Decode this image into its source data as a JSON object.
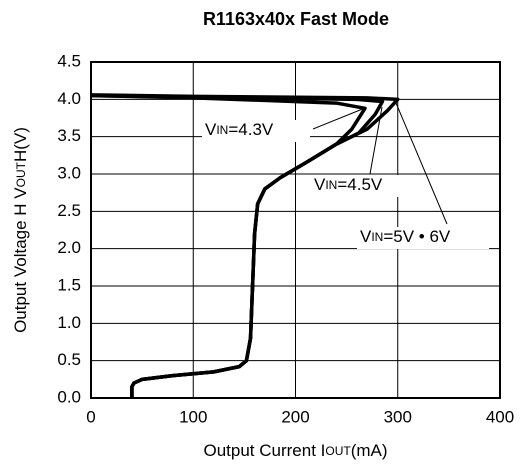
{
  "chart_data": {
    "type": "line",
    "title": "R1163x40x Fast Mode",
    "x_label": [
      "Output Current I",
      "OUT",
      "(mA)"
    ],
    "y_label": [
      "Output Voltage H V",
      "OUT",
      "H(V)"
    ],
    "xlim": [
      0,
      400
    ],
    "ylim": [
      0,
      4.5
    ],
    "xticks": [
      0,
      100,
      200,
      300,
      400
    ],
    "yticks": [
      {
        "value": 0,
        "label": "0.0"
      },
      0.5,
      {
        "value": 1,
        "label": "1.0"
      },
      1.5,
      {
        "value": 2,
        "label": "2.0"
      },
      2.5,
      {
        "value": 3,
        "label": "3.0"
      },
      3.5,
      {
        "value": 4,
        "label": "4.0"
      },
      4.5
    ],
    "grid": true,
    "series": [
      {
        "name": [
          "V",
          "IN",
          "=4.3V"
        ],
        "color": "#000000",
        "x": [
          40,
          40,
          42,
          50,
          80,
          120,
          145,
          152,
          156,
          158,
          160,
          163,
          170,
          185,
          210,
          240,
          255,
          268,
          240,
          100,
          0
        ],
        "values": [
          0,
          0.15,
          0.2,
          0.25,
          0.3,
          0.35,
          0.42,
          0.5,
          0.8,
          1.5,
          2.2,
          2.6,
          2.8,
          2.95,
          3.15,
          3.4,
          3.6,
          3.88,
          3.95,
          4.02,
          4.05
        ]
      },
      {
        "name": [
          "V",
          "IN",
          "=4.5V"
        ],
        "color": "#000000",
        "x": [
          40,
          40,
          42,
          50,
          80,
          120,
          145,
          152,
          156,
          158,
          160,
          163,
          170,
          185,
          210,
          240,
          262,
          278,
          285,
          260,
          100,
          0
        ],
        "values": [
          0,
          0.15,
          0.2,
          0.25,
          0.3,
          0.35,
          0.42,
          0.5,
          0.8,
          1.5,
          2.2,
          2.6,
          2.8,
          2.95,
          3.15,
          3.4,
          3.55,
          3.8,
          3.97,
          4.0,
          4.03,
          4.05
        ]
      },
      {
        "name": [
          "V",
          "IN",
          "=5V • 6V"
        ],
        "color": "#000000",
        "x": [
          40,
          40,
          42,
          50,
          80,
          120,
          145,
          152,
          156,
          158,
          160,
          163,
          170,
          185,
          210,
          240,
          270,
          290,
          300,
          270,
          100,
          0
        ],
        "values": [
          0,
          0.15,
          0.2,
          0.25,
          0.3,
          0.35,
          0.42,
          0.5,
          0.8,
          1.5,
          2.2,
          2.6,
          2.8,
          2.95,
          3.15,
          3.4,
          3.6,
          3.85,
          4.0,
          4.02,
          4.04,
          4.06
        ]
      }
    ]
  }
}
